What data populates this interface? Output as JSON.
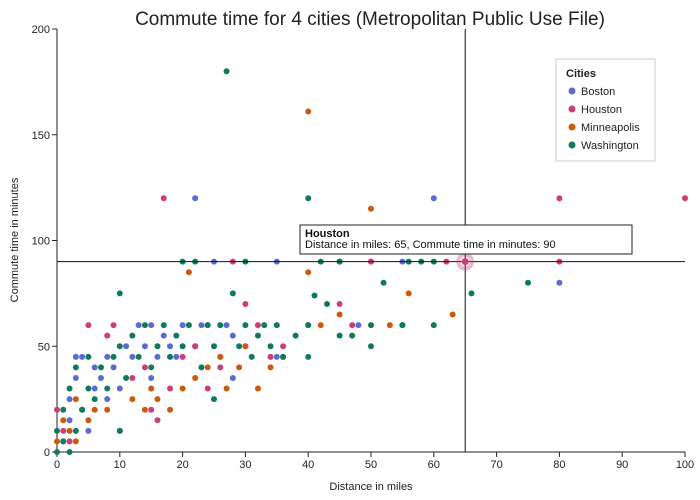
{
  "chart_data": {
    "type": "scatter",
    "title": "Commute time for 4 cities (Metropolitan Public Use File)",
    "xlabel": "Distance in miles",
    "ylabel": "Commute time in minutes",
    "xlim": [
      0,
      100
    ],
    "ylim": [
      0,
      200
    ],
    "x_ticks": [
      "0",
      "10",
      "20",
      "30",
      "40",
      "50",
      "60",
      "70",
      "80",
      "90",
      "100"
    ],
    "y_ticks": [
      "0",
      "50",
      "100",
      "150",
      "200"
    ],
    "grid": false,
    "legend": {
      "title": "Cities",
      "position": "top-right"
    },
    "series": [
      {
        "name": "Boston",
        "color": "#5b6bd1",
        "points": [
          [
            1,
            5
          ],
          [
            2,
            15
          ],
          [
            2,
            25
          ],
          [
            3,
            35
          ],
          [
            3,
            45
          ],
          [
            4,
            45
          ],
          [
            4,
            20
          ],
          [
            5,
            10
          ],
          [
            6,
            30
          ],
          [
            6,
            40
          ],
          [
            7,
            35
          ],
          [
            8,
            45
          ],
          [
            8,
            25
          ],
          [
            9,
            40
          ],
          [
            10,
            30
          ],
          [
            11,
            50
          ],
          [
            12,
            45
          ],
          [
            13,
            60
          ],
          [
            14,
            50
          ],
          [
            15,
            60
          ],
          [
            15,
            35
          ],
          [
            16,
            45
          ],
          [
            17,
            55
          ],
          [
            18,
            50
          ],
          [
            19,
            45
          ],
          [
            20,
            60
          ],
          [
            22,
            50
          ],
          [
            22,
            120
          ],
          [
            23,
            60
          ],
          [
            24,
            60
          ],
          [
            25,
            90
          ],
          [
            26,
            45
          ],
          [
            27,
            60
          ],
          [
            28,
            35
          ],
          [
            28,
            55
          ],
          [
            30,
            50
          ],
          [
            35,
            45
          ],
          [
            35,
            90
          ],
          [
            45,
            90
          ],
          [
            48,
            60
          ],
          [
            50,
            90
          ],
          [
            55,
            90
          ],
          [
            60,
            120
          ],
          [
            80,
            80
          ]
        ]
      },
      {
        "name": "Houston",
        "color": "#cc3d7a",
        "points": [
          [
            0,
            20
          ],
          [
            1,
            10
          ],
          [
            2,
            5
          ],
          [
            5,
            60
          ],
          [
            8,
            55
          ],
          [
            9,
            60
          ],
          [
            12,
            35
          ],
          [
            14,
            40
          ],
          [
            15,
            20
          ],
          [
            16,
            15
          ],
          [
            17,
            120
          ],
          [
            18,
            30
          ],
          [
            20,
            45
          ],
          [
            22,
            50
          ],
          [
            24,
            30
          ],
          [
            26,
            40
          ],
          [
            28,
            90
          ],
          [
            30,
            70
          ],
          [
            32,
            60
          ],
          [
            34,
            45
          ],
          [
            36,
            50
          ],
          [
            40,
            60
          ],
          [
            45,
            70
          ],
          [
            47,
            60
          ],
          [
            50,
            90
          ],
          [
            55,
            60
          ],
          [
            62,
            90
          ],
          [
            65,
            90
          ],
          [
            80,
            90
          ],
          [
            80,
            120
          ],
          [
            100,
            120
          ]
        ]
      },
      {
        "name": "Minneapolis",
        "color": "#cc5a0e",
        "points": [
          [
            0,
            5
          ],
          [
            1,
            15
          ],
          [
            2,
            10
          ],
          [
            3,
            5
          ],
          [
            3,
            25
          ],
          [
            5,
            15
          ],
          [
            6,
            20
          ],
          [
            8,
            20
          ],
          [
            10,
            10
          ],
          [
            12,
            25
          ],
          [
            14,
            20
          ],
          [
            15,
            30
          ],
          [
            16,
            25
          ],
          [
            18,
            20
          ],
          [
            20,
            30
          ],
          [
            21,
            85
          ],
          [
            22,
            35
          ],
          [
            24,
            40
          ],
          [
            26,
            45
          ],
          [
            27,
            30
          ],
          [
            29,
            40
          ],
          [
            30,
            50
          ],
          [
            32,
            30
          ],
          [
            34,
            40
          ],
          [
            36,
            45
          ],
          [
            40,
            85
          ],
          [
            40,
            161
          ],
          [
            42,
            60
          ],
          [
            45,
            65
          ],
          [
            50,
            115
          ],
          [
            53,
            60
          ],
          [
            56,
            75
          ],
          [
            57,
            105
          ],
          [
            63,
            65
          ],
          [
            65,
            90
          ]
        ]
      },
      {
        "name": "Washington",
        "color": "#0f7a5c",
        "points": [
          [
            0,
            0
          ],
          [
            0,
            10
          ],
          [
            1,
            5
          ],
          [
            1,
            20
          ],
          [
            2,
            0
          ],
          [
            2,
            30
          ],
          [
            3,
            10
          ],
          [
            3,
            40
          ],
          [
            4,
            20
          ],
          [
            5,
            30
          ],
          [
            5,
            45
          ],
          [
            6,
            25
          ],
          [
            7,
            40
          ],
          [
            8,
            30
          ],
          [
            9,
            45
          ],
          [
            10,
            10
          ],
          [
            10,
            50
          ],
          [
            10,
            75
          ],
          [
            11,
            35
          ],
          [
            12,
            55
          ],
          [
            13,
            45
          ],
          [
            14,
            60
          ],
          [
            15,
            40
          ],
          [
            16,
            50
          ],
          [
            17,
            60
          ],
          [
            18,
            45
          ],
          [
            19,
            55
          ],
          [
            20,
            50
          ],
          [
            20,
            90
          ],
          [
            21,
            60
          ],
          [
            22,
            90
          ],
          [
            23,
            40
          ],
          [
            24,
            60
          ],
          [
            25,
            25
          ],
          [
            25,
            50
          ],
          [
            26,
            60
          ],
          [
            27,
            180
          ],
          [
            28,
            75
          ],
          [
            29,
            50
          ],
          [
            30,
            60
          ],
          [
            30,
            90
          ],
          [
            31,
            45
          ],
          [
            32,
            55
          ],
          [
            33,
            60
          ],
          [
            34,
            50
          ],
          [
            35,
            60
          ],
          [
            36,
            45
          ],
          [
            38,
            55
          ],
          [
            40,
            60
          ],
          [
            40,
            120
          ],
          [
            40,
            45
          ],
          [
            41,
            74
          ],
          [
            42,
            90
          ],
          [
            43,
            70
          ],
          [
            45,
            90
          ],
          [
            45,
            55
          ],
          [
            47,
            55
          ],
          [
            50,
            50
          ],
          [
            50,
            60
          ],
          [
            52,
            80
          ],
          [
            55,
            60
          ],
          [
            56,
            90
          ],
          [
            58,
            90
          ],
          [
            60,
            60
          ],
          [
            60,
            90
          ],
          [
            66,
            75
          ],
          [
            75,
            80
          ]
        ]
      }
    ],
    "highlight": {
      "series": "Houston",
      "x": 65,
      "y": 90
    },
    "tooltip": {
      "title": "Houston",
      "text": "Distance in miles: 65, Commute time in minutes: 90"
    }
  }
}
